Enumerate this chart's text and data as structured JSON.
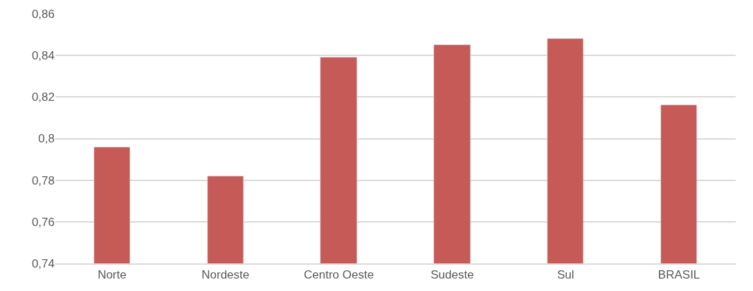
{
  "chart_data": {
    "type": "bar",
    "categories": [
      "Norte",
      "Nordeste",
      "Centro Oeste",
      "Sudeste",
      "Sul",
      "BRASIL"
    ],
    "values": [
      0.796,
      0.782,
      0.839,
      0.845,
      0.848,
      0.816
    ],
    "color": "#c55a57",
    "ylim": [
      0.74,
      0.86
    ],
    "yticks": [
      {
        "value": 0.74,
        "label": "0,74"
      },
      {
        "value": 0.76,
        "label": "0,76"
      },
      {
        "value": 0.78,
        "label": "0,78"
      },
      {
        "value": 0.8,
        "label": "0,8"
      },
      {
        "value": 0.82,
        "label": "0,82"
      },
      {
        "value": 0.84,
        "label": "0,84"
      },
      {
        "value": 0.86,
        "label": "0,86"
      }
    ],
    "grid": "y",
    "legend": false
  }
}
